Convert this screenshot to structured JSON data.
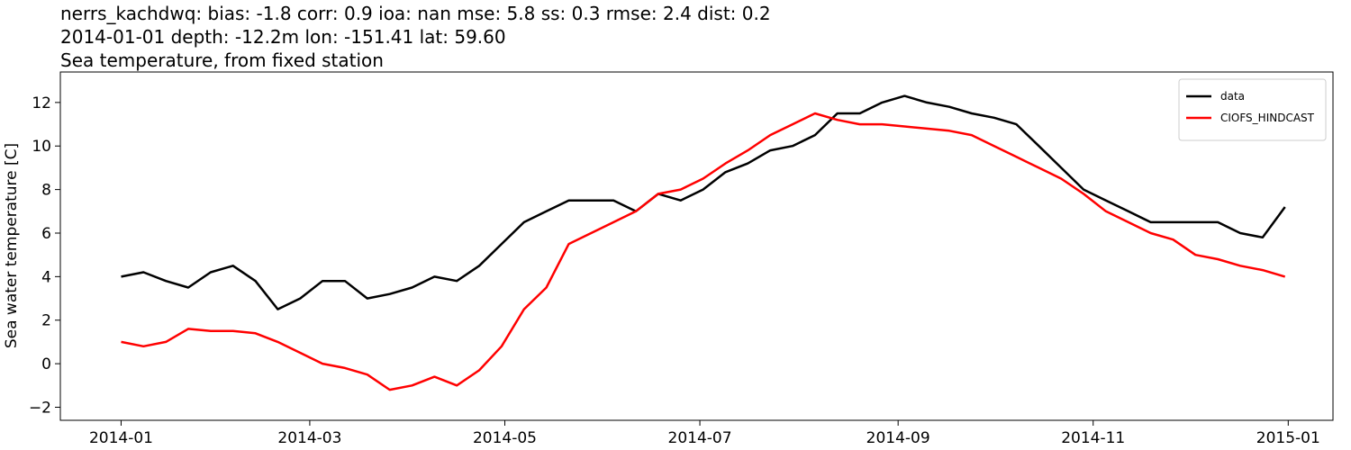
{
  "chart_data": {
    "type": "line",
    "title_lines": [
      "nerrs_kachdwq: bias: -1.8  corr: 0.9  ioa: nan  mse: 5.8  ss: 0.3  rmse: 2.4  dist: 0.2",
      "2014-01-01 depth: -12.2m lon: -151.41 lat: 59.60",
      "Sea temperature, from fixed station"
    ],
    "ylabel": "Sea water temperature [C]",
    "x": [
      "2014-01-01",
      "2014-01-08",
      "2014-01-15",
      "2014-01-22",
      "2014-01-29",
      "2014-02-05",
      "2014-02-12",
      "2014-02-19",
      "2014-02-26",
      "2014-03-05",
      "2014-03-12",
      "2014-03-19",
      "2014-03-26",
      "2014-04-02",
      "2014-04-09",
      "2014-04-16",
      "2014-04-23",
      "2014-04-30",
      "2014-05-07",
      "2014-05-14",
      "2014-05-21",
      "2014-05-28",
      "2014-06-04",
      "2014-06-11",
      "2014-06-18",
      "2014-06-25",
      "2014-07-02",
      "2014-07-09",
      "2014-07-16",
      "2014-07-23",
      "2014-07-30",
      "2014-08-06",
      "2014-08-13",
      "2014-08-20",
      "2014-08-27",
      "2014-09-03",
      "2014-09-10",
      "2014-09-17",
      "2014-09-24",
      "2014-10-01",
      "2014-10-08",
      "2014-10-15",
      "2014-10-22",
      "2014-10-29",
      "2014-11-05",
      "2014-11-12",
      "2014-11-19",
      "2014-11-26",
      "2014-12-03",
      "2014-12-10",
      "2014-12-17",
      "2014-12-24",
      "2014-12-31"
    ],
    "series": [
      {
        "name": "data",
        "color": "#000000",
        "values": [
          4.0,
          4.2,
          3.8,
          3.5,
          4.2,
          4.5,
          3.8,
          2.5,
          3.0,
          3.8,
          3.8,
          3.0,
          3.2,
          3.5,
          4.0,
          3.8,
          4.5,
          5.5,
          6.5,
          7.0,
          7.5,
          7.5,
          7.5,
          7.0,
          7.8,
          7.5,
          8.0,
          8.8,
          9.2,
          9.8,
          10.0,
          10.5,
          11.5,
          11.5,
          12.0,
          12.3,
          12.0,
          11.8,
          11.5,
          11.3,
          11.0,
          10.0,
          9.0,
          8.0,
          7.5,
          7.0,
          6.5,
          6.5,
          6.5,
          6.5,
          6.0,
          5.8,
          7.2
        ]
      },
      {
        "name": "CIOFS_HINDCAST",
        "color": "#ff0000",
        "values": [
          1.0,
          0.8,
          1.0,
          1.6,
          1.5,
          1.5,
          1.4,
          1.0,
          0.5,
          0.0,
          -0.2,
          -0.5,
          -1.2,
          -1.0,
          -0.6,
          -1.0,
          -0.3,
          0.8,
          2.5,
          3.5,
          5.5,
          6.0,
          6.5,
          7.0,
          7.8,
          8.0,
          8.5,
          9.2,
          9.8,
          10.5,
          11.0,
          11.5,
          11.2,
          11.0,
          11.0,
          10.9,
          10.8,
          10.7,
          10.5,
          10.0,
          9.5,
          9.0,
          8.5,
          7.8,
          7.0,
          6.5,
          6.0,
          5.7,
          5.0,
          4.8,
          4.5,
          4.3,
          4.0
        ]
      }
    ],
    "xlim": [
      "2013-12-13",
      "2015-01-15"
    ],
    "xticks": [
      {
        "value": "2014-01-01",
        "label": "2014-01"
      },
      {
        "value": "2014-03-01",
        "label": "2014-03"
      },
      {
        "value": "2014-05-01",
        "label": "2014-05"
      },
      {
        "value": "2014-07-01",
        "label": "2014-07"
      },
      {
        "value": "2014-09-01",
        "label": "2014-09"
      },
      {
        "value": "2014-11-01",
        "label": "2014-11"
      },
      {
        "value": "2015-01-01",
        "label": "2015-01"
      }
    ],
    "ylim": [
      -2.6,
      13.4
    ],
    "yticks": [
      {
        "value": -2,
        "label": "−2"
      },
      0,
      2,
      4,
      6,
      8,
      10,
      12
    ],
    "legend": "upper right"
  }
}
